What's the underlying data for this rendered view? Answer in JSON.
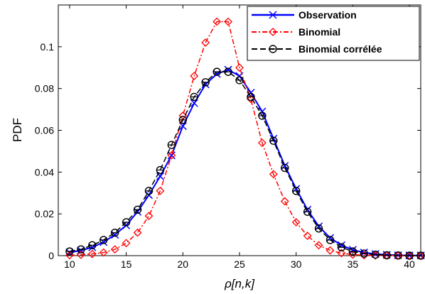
{
  "chart_data": {
    "type": "line",
    "title": "",
    "xlabel": "ρ[n,k]",
    "ylabel": "PDF",
    "xlim": [
      9,
      41
    ],
    "ylim": [
      0,
      0.12
    ],
    "xticks": [
      10,
      15,
      20,
      25,
      30,
      35,
      40
    ],
    "yticks": [
      0,
      0.02,
      0.04,
      0.06,
      0.08,
      0.1
    ],
    "ytick_labels": [
      "0",
      "0.02",
      "0.04",
      "0.06",
      "0.08",
      "0.1"
    ],
    "legend_position": "top-right",
    "grid": false,
    "series": [
      {
        "name": "Observation",
        "color": "#0000ff",
        "line_style": "solid",
        "marker": "x",
        "x": [
          10,
          11,
          12,
          13,
          14,
          15,
          16,
          17,
          18,
          19,
          20,
          21,
          22,
          23,
          24,
          25,
          26,
          27,
          28,
          29,
          30,
          31,
          32,
          33,
          34,
          35,
          36,
          37,
          38,
          39,
          40,
          41
        ],
        "y": [
          0.0015,
          0.0025,
          0.004,
          0.0065,
          0.01,
          0.0145,
          0.021,
          0.029,
          0.038,
          0.048,
          0.062,
          0.073,
          0.082,
          0.087,
          0.089,
          0.086,
          0.078,
          0.069,
          0.056,
          0.043,
          0.032,
          0.022,
          0.014,
          0.0085,
          0.005,
          0.0028,
          0.0015,
          0.0008,
          0.0004,
          0.0002,
          0.0001,
          0.0001
        ]
      },
      {
        "name": "Binomial",
        "color": "#ff0000",
        "line_style": "dashdot",
        "marker": "diamond",
        "x": [
          10,
          11,
          12,
          13,
          14,
          15,
          16,
          17,
          18,
          19,
          20,
          21,
          22,
          23,
          24,
          25,
          26,
          27,
          28,
          29,
          30,
          31,
          32,
          33,
          34,
          35,
          36,
          37,
          38,
          39,
          40,
          41
        ],
        "y": [
          0.0002,
          0.0004,
          0.0008,
          0.0015,
          0.003,
          0.006,
          0.011,
          0.019,
          0.031,
          0.048,
          0.067,
          0.086,
          0.102,
          0.112,
          0.112,
          0.09,
          0.075,
          0.054,
          0.039,
          0.026,
          0.016,
          0.0095,
          0.005,
          0.0025,
          0.0012,
          0.0005,
          0.0002,
          0.0001,
          0.0001,
          0,
          0,
          0
        ]
      },
      {
        "name": "Binomial corrélée",
        "color": "#000000",
        "line_style": "dashed",
        "marker": "circle",
        "x": [
          10,
          11,
          12,
          13,
          14,
          15,
          16,
          17,
          18,
          19,
          20,
          21,
          22,
          23,
          24,
          25,
          26,
          27,
          28,
          29,
          30,
          31,
          32,
          33,
          34,
          35,
          36,
          37,
          38,
          39,
          40,
          41
        ],
        "y": [
          0.002,
          0.003,
          0.005,
          0.0075,
          0.011,
          0.016,
          0.022,
          0.031,
          0.041,
          0.053,
          0.065,
          0.076,
          0.083,
          0.088,
          0.088,
          0.084,
          0.076,
          0.067,
          0.055,
          0.042,
          0.031,
          0.021,
          0.013,
          0.0075,
          0.004,
          0.002,
          0.001,
          0.0005,
          0.0002,
          0.0001,
          0,
          0
        ]
      }
    ]
  }
}
